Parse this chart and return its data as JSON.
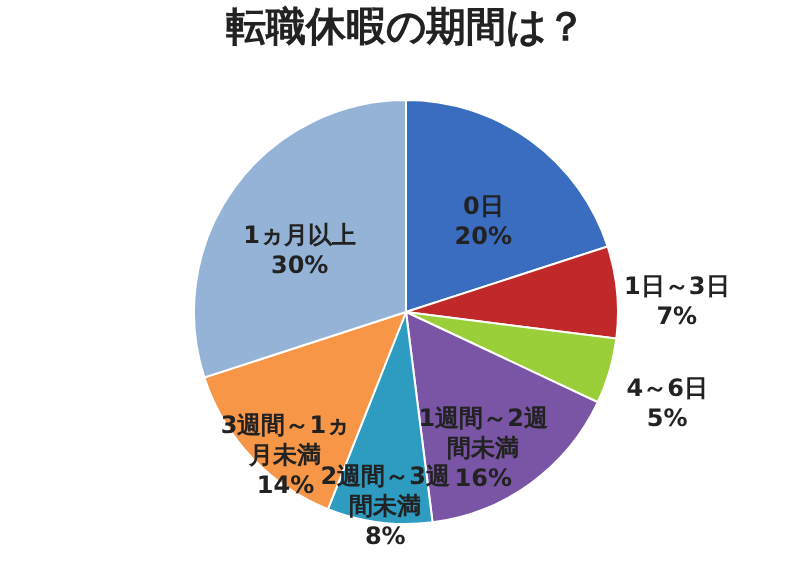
{
  "chart_data": {
    "type": "pie",
    "title": "転職休暇の期間は？",
    "categories": [
      "0日",
      "1日～3日",
      "4～6日",
      "1週間～2週間未満",
      "2週間～3週間未満",
      "3週間～1ヵ月未満",
      "1ヵ月以上"
    ],
    "values": [
      20,
      7,
      5,
      16,
      8,
      14,
      30
    ],
    "value_labels": [
      "20%",
      "7%",
      "5%",
      "16%",
      "8%",
      "14%",
      "30%"
    ],
    "colors": [
      "#3a6cc0",
      "#c0282a",
      "#9bcf3a",
      "#7a55a5",
      "#2e9bc0",
      "#f79646",
      "#95b3d7"
    ],
    "legend": false
  }
}
